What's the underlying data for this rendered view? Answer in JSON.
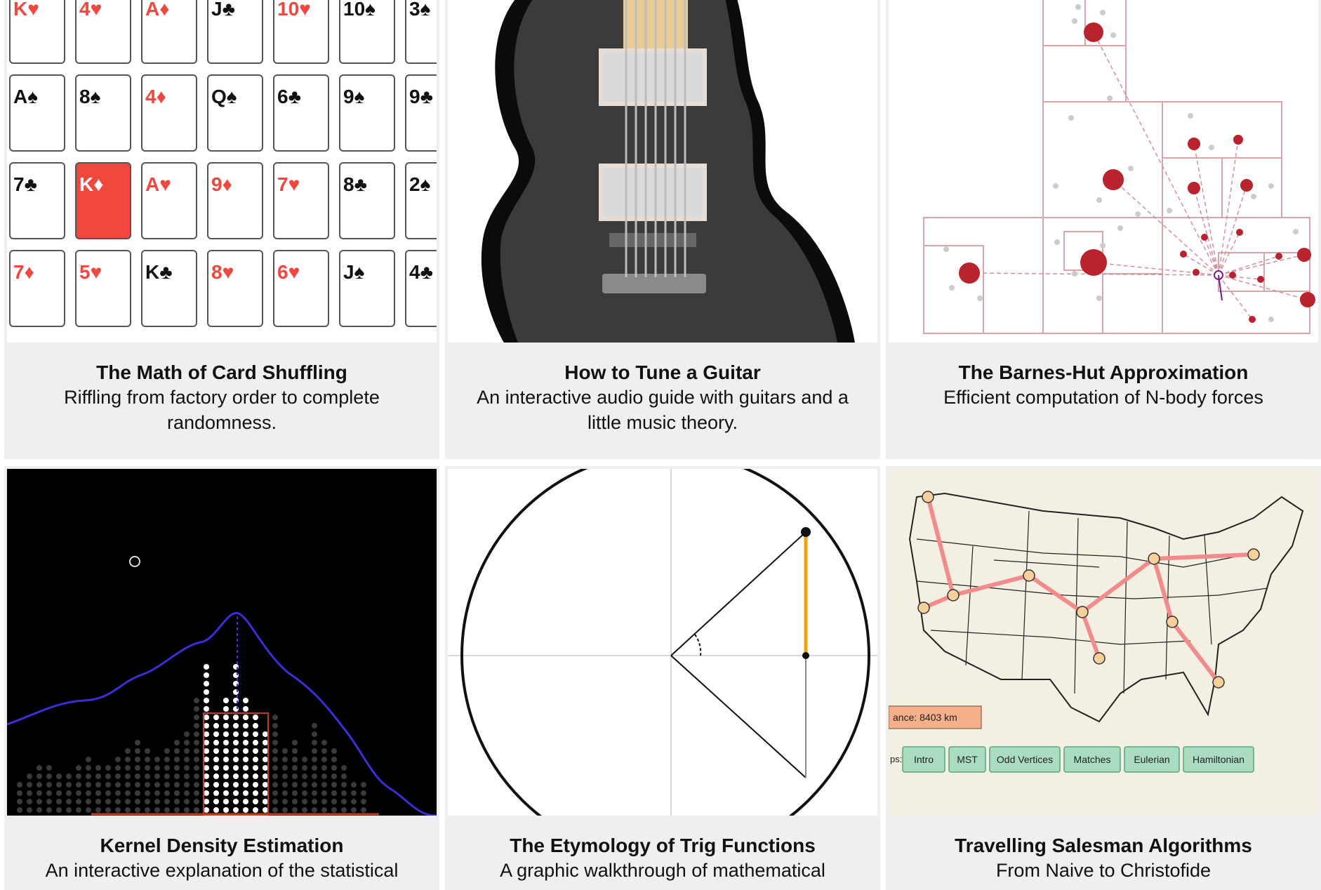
{
  "cards": [
    {
      "title": "The Math of Card Shuffling",
      "desc": "Riffling from factory order to complete randomness."
    },
    {
      "title": "How to Tune a Guitar",
      "desc": "An interactive audio guide with guitars and a little music theory."
    },
    {
      "title": "The Barnes-Hut Approximation",
      "desc": "Efficient computation of N-body forces"
    },
    {
      "title": "Kernel Density Estimation",
      "desc": "An interactive explanation of the statistical"
    },
    {
      "title": "The Etymology of Trig Functions",
      "desc": "A graphic walkthrough of mathematical"
    },
    {
      "title": "Travelling Salesman Algorithms",
      "desc": "From Naive to Christofide"
    }
  ],
  "playing_cards": [
    [
      "K♥",
      "4♥",
      "A♦",
      "J♣",
      "10♥",
      "10♠",
      "3♠"
    ],
    [
      "A♠",
      "8♠",
      "4♦",
      "Q♠",
      "6♣",
      "9♠",
      "9♣"
    ],
    [
      "7♣",
      "K♦",
      "A♥",
      "9♦",
      "7♥",
      "8♣",
      "2♠"
    ],
    [
      "7♦",
      "5♥",
      "K♣",
      "8♥",
      "6♥",
      "J♠",
      "4♣"
    ]
  ],
  "tsp": {
    "distance_label": "ance: 8403 km",
    "steps_label": "ps:",
    "buttons": [
      "Intro",
      "MST",
      "Odd Vertices",
      "Matches",
      "Eulerian",
      "Hamiltonian"
    ]
  },
  "colors": {
    "card_red": "#f0483e",
    "kde_line": "#3a2fd6",
    "tsp_path": "#f28b8b",
    "tsp_bg": "#f3efe2",
    "trig_highlight": "#f0a500",
    "barnes_node": "#b8232d"
  }
}
